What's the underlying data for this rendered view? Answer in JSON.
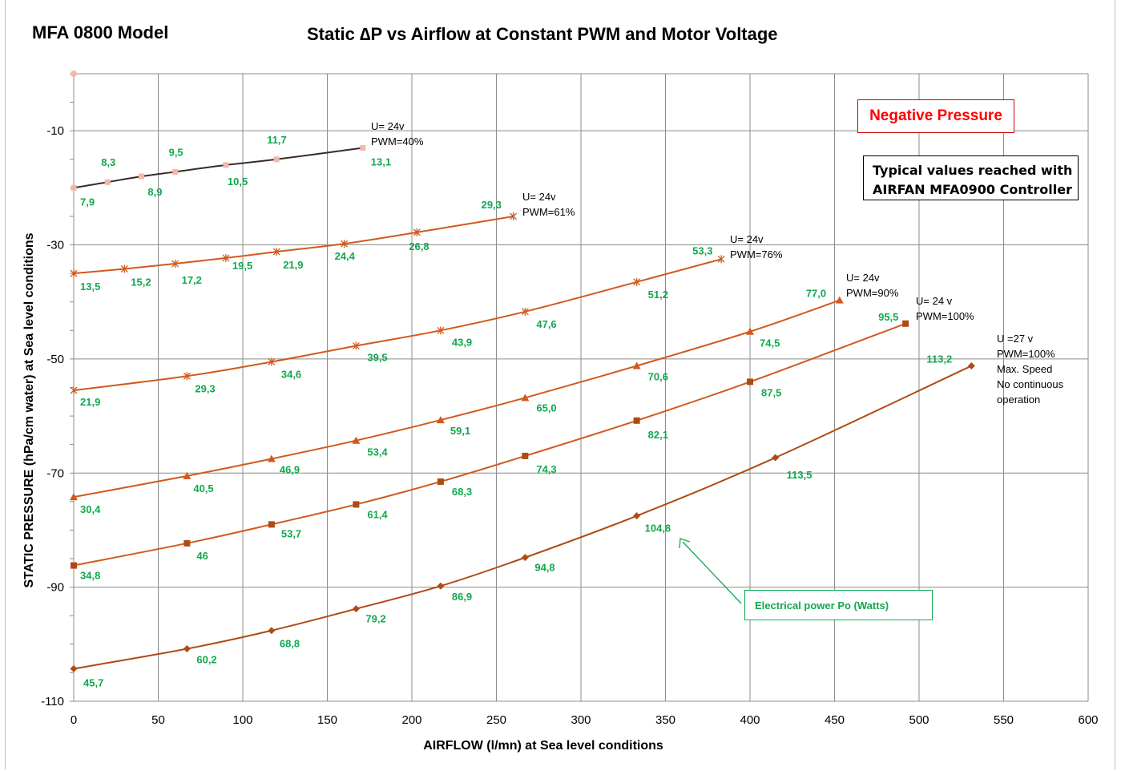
{
  "header": {
    "model_title": "MFA 0800 Model",
    "chart_title": "Static ∆P  vs Airflow at Constant PWM and Motor Voltage"
  },
  "annotations": {
    "negative_pressure": "Negative Pressure",
    "typical_line1": "Typical values reached with",
    "typical_line2": "AIRFAN MFA0900 Controller",
    "power_note": "Electrical power Po (Watts)"
  },
  "colors": {
    "label_green": "#11a84e",
    "series_40": "#3a2a2a",
    "series_orange": "#d05a1e",
    "series_dark": "#b04a14",
    "marker_pink": "#f4b6a8"
  },
  "chart_data": {
    "type": "line",
    "title": "Static ∆P  vs Airflow at Constant PWM and Motor Voltage",
    "xlabel": "AIRFLOW (l/mn) at Sea level conditions",
    "ylabel": "STATIC PRESSURE (hPa/cm water) at Sea level conditions",
    "xlim": [
      0,
      600
    ],
    "ylim": [
      -110,
      0
    ],
    "x_ticks": [
      "0",
      "50",
      "100",
      "150",
      "200",
      "250",
      "300",
      "350",
      "400",
      "450",
      "500",
      "550",
      "600"
    ],
    "y_ticks": [
      "-10",
      "-30",
      "-50",
      "-70",
      "-90",
      "-110"
    ],
    "grid": true,
    "series": [
      {
        "label_lines": [
          "U= 24v",
          "PWM=40%"
        ],
        "marker": "square",
        "points": [
          {
            "x": 0,
            "y": -20.0,
            "p": "7,9"
          },
          {
            "x": 20,
            "y": -19.0,
            "p": "8,3"
          },
          {
            "x": 40,
            "y": -18.0,
            "p": "8,9"
          },
          {
            "x": 60,
            "y": -17.2,
            "p": "9,5"
          },
          {
            "x": 90,
            "y": -16.0,
            "p": "10,5"
          },
          {
            "x": 120,
            "y": -15.0,
            "p": "11,7"
          },
          {
            "x": 171,
            "y": -13.0,
            "p": "13,1"
          }
        ]
      },
      {
        "label_lines": [
          "U= 24v",
          "PWM=61%"
        ],
        "marker": "star",
        "points": [
          {
            "x": 0,
            "y": -35.0,
            "p": "13,5"
          },
          {
            "x": 30,
            "y": -34.2,
            "p": "15,2"
          },
          {
            "x": 60,
            "y": -33.3,
            "p": "17,2"
          },
          {
            "x": 90,
            "y": -32.3,
            "p": "19,5"
          },
          {
            "x": 120,
            "y": -31.2,
            "p": "21,9"
          },
          {
            "x": 160,
            "y": -29.8,
            "p": "24,4"
          },
          {
            "x": 203,
            "y": -27.8,
            "p": "26,8"
          },
          {
            "x": 260,
            "y": -25.0,
            "p": "29,3"
          }
        ]
      },
      {
        "label_lines": [
          "U= 24v",
          "PWM=76%"
        ],
        "marker": "star",
        "points": [
          {
            "x": 0,
            "y": -55.5,
            "p": "21,9"
          },
          {
            "x": 67,
            "y": -53.0,
            "p": "29,3"
          },
          {
            "x": 117,
            "y": -50.5,
            "p": "34,6"
          },
          {
            "x": 167,
            "y": -47.7,
            "p": "39,5"
          },
          {
            "x": 217,
            "y": -45.0,
            "p": "43,9"
          },
          {
            "x": 267,
            "y": -41.7,
            "p": "47,6"
          },
          {
            "x": 333,
            "y": -36.5,
            "p": "51,2"
          },
          {
            "x": 383,
            "y": -32.5,
            "p": "53,3"
          }
        ]
      },
      {
        "label_lines": [
          "U= 24v",
          "PWM=90%"
        ],
        "marker": "triangle",
        "points": [
          {
            "x": 0,
            "y": -74.2,
            "p": "30,4"
          },
          {
            "x": 67,
            "y": -70.5,
            "p": "40,5"
          },
          {
            "x": 117,
            "y": -67.5,
            "p": "46,9"
          },
          {
            "x": 167,
            "y": -64.3,
            "p": "53,4"
          },
          {
            "x": 217,
            "y": -60.7,
            "p": "59,1"
          },
          {
            "x": 267,
            "y": -56.8,
            "p": "65,0"
          },
          {
            "x": 333,
            "y": -51.2,
            "p": "70,6"
          },
          {
            "x": 400,
            "y": -45.2,
            "p": "74,5"
          },
          {
            "x": 453,
            "y": -39.7,
            "p": "77,0"
          }
        ]
      },
      {
        "label_lines": [
          "U= 24 v",
          "PWM=100%"
        ],
        "marker": "square",
        "points": [
          {
            "x": 0,
            "y": -86.2,
            "p": "34,8"
          },
          {
            "x": 67,
            "y": -82.3,
            "p": "46"
          },
          {
            "x": 117,
            "y": -79.0,
            "p": "53,7"
          },
          {
            "x": 167,
            "y": -75.5,
            "p": "61,4"
          },
          {
            "x": 217,
            "y": -71.5,
            "p": "68,3"
          },
          {
            "x": 267,
            "y": -67.0,
            "p": "74,3"
          },
          {
            "x": 333,
            "y": -60.8,
            "p": "82,1"
          },
          {
            "x": 400,
            "y": -54.0,
            "p": "87,5"
          },
          {
            "x": 492,
            "y": -43.8,
            "p": "95,5"
          }
        ]
      },
      {
        "label_lines": [
          "U =27 v",
          "PWM=100%",
          "Max. Speed",
          "No continuous",
          "operation"
        ],
        "marker": "diamond",
        "points": [
          {
            "x": 0,
            "y": -104.3,
            "p": "45,7"
          },
          {
            "x": 67,
            "y": -100.8,
            "p": "60,2"
          },
          {
            "x": 117,
            "y": -97.6,
            "p": "68,8"
          },
          {
            "x": 167,
            "y": -93.8,
            "p": "79,2"
          },
          {
            "x": 217,
            "y": -89.8,
            "p": "86,9"
          },
          {
            "x": 267,
            "y": -84.8,
            "p": "94,8"
          },
          {
            "x": 333,
            "y": -77.5,
            "p": "104,8"
          },
          {
            "x": 415,
            "y": -67.3,
            "p": "113,5"
          },
          {
            "x": 531,
            "y": -51.2,
            "p": "113,2"
          }
        ]
      }
    ]
  }
}
